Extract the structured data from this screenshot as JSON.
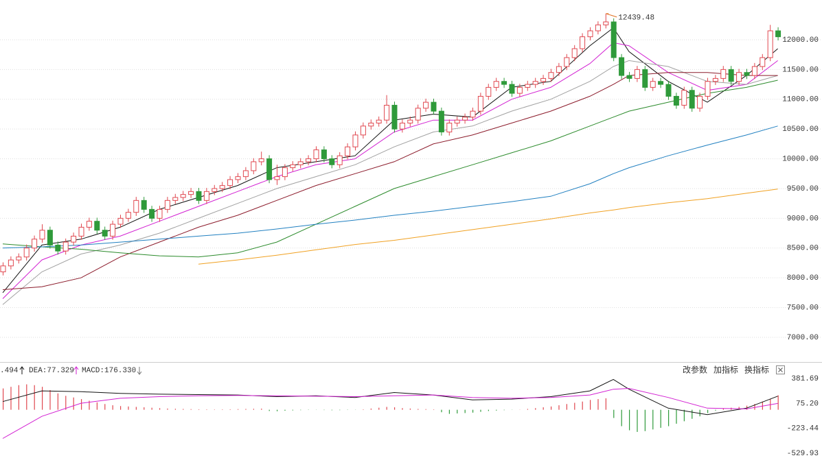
{
  "chart_data": [
    {
      "type": "candlestick",
      "open": [
        8100,
        8200,
        8300,
        8350,
        8500,
        8650,
        8800,
        8550,
        8450,
        8600,
        8700,
        8850,
        8950,
        8800,
        8700,
        8900,
        9000,
        9100,
        9300,
        9150,
        9000,
        9150,
        9300,
        9350,
        9400,
        9450,
        9300,
        9450,
        9500,
        9550,
        9650,
        9700,
        9800,
        9950,
        10000,
        9650,
        9700,
        9850,
        9900,
        9950,
        10000,
        10150,
        10000,
        9900,
        10050,
        10200,
        10400,
        10550,
        10600,
        10650,
        10900,
        10500,
        10600,
        10650,
        10850,
        10950,
        10800,
        10450,
        10600,
        10650,
        10700,
        10800,
        11050,
        11200,
        11300,
        11250,
        11100,
        11200,
        11250,
        11300,
        11350,
        11450,
        11550,
        11700,
        11850,
        12050,
        12150,
        12250,
        12300,
        11700,
        11400,
        11350,
        11500,
        11200,
        11300,
        11250,
        11050,
        10900,
        11150,
        10850,
        11050,
        11300,
        11350,
        11500,
        11300,
        11450,
        11400,
        11550,
        11700,
        12150
      ],
      "high": [
        8260,
        8360,
        8410,
        8560,
        8710,
        8900,
        8860,
        8610,
        8660,
        8760,
        8910,
        9010,
        9010,
        8860,
        8960,
        9060,
        9160,
        9360,
        9360,
        9210,
        9210,
        9360,
        9410,
        9460,
        9510,
        9510,
        9510,
        9560,
        9610,
        9710,
        9760,
        9860,
        10010,
        10120,
        10060,
        9900,
        9910,
        9960,
        10010,
        10060,
        10210,
        10210,
        10060,
        10110,
        10260,
        10460,
        10610,
        10660,
        10710,
        11070,
        10960,
        10660,
        10710,
        10910,
        11010,
        11010,
        10860,
        10660,
        10710,
        10760,
        10860,
        11110,
        11260,
        11360,
        11360,
        11310,
        11260,
        11310,
        11360,
        11410,
        11510,
        11610,
        11760,
        11910,
        12110,
        12210,
        12310,
        12439.48,
        12360,
        11760,
        11460,
        11560,
        11560,
        11360,
        11360,
        11310,
        11110,
        11210,
        11210,
        11110,
        11360,
        11410,
        11560,
        11560,
        11510,
        11510,
        11610,
        11760,
        12250,
        12210
      ],
      "low": [
        8040,
        8140,
        8240,
        8290,
        8440,
        8590,
        8490,
        8390,
        8390,
        8540,
        8640,
        8790,
        8740,
        8640,
        8640,
        8840,
        8940,
        9040,
        9090,
        8940,
        8940,
        9090,
        9240,
        9290,
        9340,
        9240,
        9240,
        9390,
        9440,
        9490,
        9590,
        9640,
        9740,
        9890,
        9590,
        9560,
        9640,
        9790,
        9840,
        9890,
        9940,
        9940,
        9840,
        9840,
        9990,
        10140,
        10340,
        10490,
        10540,
        10590,
        10440,
        10440,
        10540,
        10590,
        10790,
        10740,
        10390,
        10390,
        10540,
        10590,
        10640,
        10740,
        10990,
        11140,
        11190,
        11040,
        11040,
        11140,
        11190,
        11240,
        11290,
        11390,
        11490,
        11640,
        11790,
        11990,
        12090,
        12190,
        11640,
        11340,
        11290,
        11290,
        11140,
        11140,
        11190,
        10990,
        10840,
        10840,
        10790,
        10790,
        10990,
        11240,
        11290,
        11240,
        11240,
        11340,
        11340,
        11490,
        11640,
        11990
      ],
      "close": [
        8200,
        8300,
        8350,
        8500,
        8650,
        8800,
        8550,
        8450,
        8600,
        8700,
        8850,
        8950,
        8800,
        8700,
        8900,
        9000,
        9100,
        9300,
        9150,
        9000,
        9150,
        9300,
        9350,
        9400,
        9450,
        9300,
        9450,
        9500,
        9550,
        9650,
        9700,
        9800,
        9950,
        10000,
        9650,
        9700,
        9850,
        9900,
        9950,
        10000,
        10150,
        10000,
        9900,
        10050,
        10200,
        10400,
        10550,
        10600,
        10650,
        10900,
        10500,
        10600,
        10650,
        10850,
        10950,
        10800,
        10450,
        10600,
        10650,
        10700,
        10800,
        11050,
        11200,
        11300,
        11250,
        11100,
        11200,
        11250,
        11300,
        11350,
        11450,
        11550,
        11700,
        11850,
        12050,
        12150,
        12250,
        12300,
        11700,
        11400,
        11350,
        11500,
        11200,
        11300,
        11250,
        11050,
        10900,
        11150,
        10850,
        11050,
        11300,
        11350,
        11500,
        11300,
        11450,
        11400,
        11550,
        11700,
        12150,
        12050
      ],
      "up_color": "#e0474f",
      "down_color": "#2f9a3a",
      "lines": [
        {
          "color": "#111111",
          "x": [
            0,
            5,
            10,
            15,
            20,
            25,
            30,
            35,
            40,
            45,
            50,
            55,
            60,
            65,
            70,
            75,
            78,
            80,
            85,
            90,
            95,
            99
          ],
          "values": [
            7750,
            8550,
            8650,
            8850,
            9150,
            9350,
            9550,
            9850,
            9950,
            10050,
            10650,
            10750,
            10700,
            11200,
            11300,
            11900,
            12200,
            11800,
            11300,
            10950,
            11400,
            11850
          ]
        },
        {
          "color": "#d21fd2",
          "x": [
            0,
            5,
            10,
            15,
            20,
            25,
            30,
            35,
            40,
            45,
            50,
            55,
            60,
            65,
            70,
            75,
            78,
            80,
            85,
            90,
            95,
            99
          ],
          "values": [
            7650,
            8300,
            8550,
            8700,
            8950,
            9200,
            9450,
            9700,
            9900,
            10000,
            10450,
            10650,
            10650,
            11000,
            11200,
            11600,
            11950,
            11900,
            11450,
            11150,
            11250,
            11650
          ]
        },
        {
          "color": "#a0a0a0",
          "x": [
            0,
            5,
            10,
            15,
            20,
            25,
            30,
            35,
            40,
            45,
            50,
            55,
            60,
            65,
            70,
            75,
            78,
            80,
            85,
            90,
            95,
            99
          ],
          "values": [
            7550,
            8100,
            8400,
            8550,
            8750,
            9000,
            9250,
            9500,
            9700,
            9900,
            10200,
            10450,
            10550,
            10800,
            11000,
            11300,
            11550,
            11650,
            11550,
            11300,
            11250,
            11400
          ]
        },
        {
          "color": "#8b1a2a",
          "x": [
            0,
            5,
            10,
            15,
            20,
            25,
            30,
            35,
            40,
            45,
            50,
            55,
            60,
            65,
            70,
            75,
            78,
            80,
            85,
            90,
            95,
            99
          ],
          "values": [
            7800,
            7850,
            8000,
            8350,
            8600,
            8850,
            9050,
            9300,
            9550,
            9750,
            9950,
            10250,
            10400,
            10600,
            10800,
            11050,
            11250,
            11400,
            11450,
            11450,
            11400,
            11400
          ]
        },
        {
          "color": "#2a8a2a",
          "x": [
            0,
            5,
            10,
            15,
            20,
            25,
            30,
            35,
            40,
            45,
            50,
            55,
            60,
            65,
            70,
            75,
            78,
            80,
            85,
            90,
            95,
            99
          ],
          "values": [
            8570,
            8520,
            8480,
            8420,
            8370,
            8350,
            8420,
            8600,
            8900,
            9200,
            9500,
            9700,
            9900,
            10100,
            10300,
            10550,
            10700,
            10800,
            10950,
            11100,
            11200,
            11320
          ]
        },
        {
          "color": "#1f7fc0",
          "x": [
            0,
            5,
            10,
            15,
            20,
            25,
            30,
            35,
            40,
            45,
            50,
            55,
            60,
            65,
            70,
            75,
            78,
            80,
            85,
            90,
            95,
            99
          ],
          "values": [
            8500,
            8520,
            8550,
            8600,
            8650,
            8700,
            8750,
            8820,
            8900,
            8970,
            9050,
            9120,
            9200,
            9280,
            9370,
            9580,
            9750,
            9850,
            10050,
            10230,
            10400,
            10550
          ]
        },
        {
          "color": "#f0a020",
          "x": [
            0,
            5,
            10,
            15,
            20,
            25,
            30,
            35,
            40,
            45,
            50,
            55,
            60,
            65,
            70,
            75,
            78,
            80,
            85,
            90,
            95,
            99
          ],
          "values": [
            null,
            null,
            null,
            null,
            null,
            8230,
            8300,
            8380,
            8470,
            8560,
            8630,
            8720,
            8810,
            8900,
            8990,
            9090,
            9140,
            9180,
            9260,
            9330,
            9420,
            9490
          ]
        }
      ],
      "xlim": [
        -0.35,
        99.65
      ],
      "ylim": [
        6585,
        12668
      ],
      "yticks": [
        {
          "value": 7000,
          "label": "7000.00"
        },
        {
          "value": 7500,
          "label": "7500.00"
        },
        {
          "value": 8000,
          "label": "8000.00"
        },
        {
          "value": 8500,
          "label": "8500.00"
        },
        {
          "value": 9000,
          "label": "9000.00"
        },
        {
          "value": 9500,
          "label": "9500.00"
        },
        {
          "value": 10000,
          "label": "10000.00"
        },
        {
          "value": 10500,
          "label": "10500.00"
        },
        {
          "value": 11000,
          "label": "11000.00"
        },
        {
          "value": 11500,
          "label": "11500.00"
        },
        {
          "value": 12000,
          "label": "12000.00"
        }
      ],
      "grid": true,
      "annotation_color": "#e07020"
    },
    {
      "type": "macd",
      "histogram": [
        260,
        280,
        300,
        310,
        300,
        280,
        240,
        200,
        170,
        150,
        130,
        110,
        90,
        70,
        55,
        45,
        40,
        35,
        30,
        25,
        20,
        15,
        12,
        10,
        8,
        6,
        5,
        4,
        5,
        6,
        8,
        10,
        12,
        14,
        -15,
        -18,
        -12,
        -8,
        -5,
        -3,
        -2,
        -4,
        -6,
        -5,
        -3,
        -2,
        5,
        15,
        25,
        35,
        30,
        20,
        15,
        10,
        8,
        5,
        -30,
        -50,
        -45,
        -40,
        -35,
        -25,
        -15,
        -10,
        -5,
        -2,
        2,
        10,
        20,
        30,
        40,
        55,
        70,
        85,
        100,
        120,
        130,
        140,
        -100,
        -200,
        -250,
        -270,
        -260,
        -240,
        -220,
        -200,
        -170,
        -140,
        -110,
        -80,
        -40,
        -10,
        15,
        25,
        35,
        50,
        70,
        100,
        130,
        176.33
      ],
      "up_color": "#e0474f",
      "down_color": "#2f9a3a",
      "lines": [
        {
          "color": "#111111",
          "x": [
            0,
            5,
            10,
            15,
            20,
            25,
            30,
            35,
            40,
            45,
            50,
            55,
            60,
            65,
            70,
            75,
            78,
            80,
            85,
            90,
            95,
            99
          ],
          "values": [
            100,
            230,
            220,
            200,
            190,
            185,
            180,
            160,
            170,
            150,
            210,
            180,
            120,
            130,
            160,
            230,
            370,
            250,
            20,
            -60,
            20,
            165.494
          ]
        },
        {
          "color": "#d21fd2",
          "x": [
            0,
            5,
            10,
            15,
            20,
            25,
            30,
            35,
            40,
            45,
            50,
            55,
            60,
            65,
            70,
            75,
            78,
            80,
            85,
            90,
            95,
            99
          ],
          "values": [
            -350,
            -80,
            80,
            140,
            160,
            170,
            175,
            170,
            165,
            160,
            170,
            180,
            150,
            140,
            150,
            180,
            250,
            260,
            150,
            20,
            10,
            77.329
          ]
        }
      ],
      "xlim": [
        -0.35,
        99.65
      ],
      "ylim": [
        -588,
        440
      ],
      "yticks": [
        381.69,
        {
          "value": 75.2,
          "label": "75.20"
        },
        -223.44,
        -529.93
      ],
      "labels": [
        {
          "text": ".494",
          "color": "#111111"
        },
        {
          "text": "DEA:77.329",
          "color": "#d21fd2"
        },
        {
          "text": "MACD:176.330",
          "color": "#777777"
        }
      ]
    }
  ],
  "toolbar": {
    "buttons": [
      "改参数",
      "加指标",
      "换指标"
    ]
  }
}
